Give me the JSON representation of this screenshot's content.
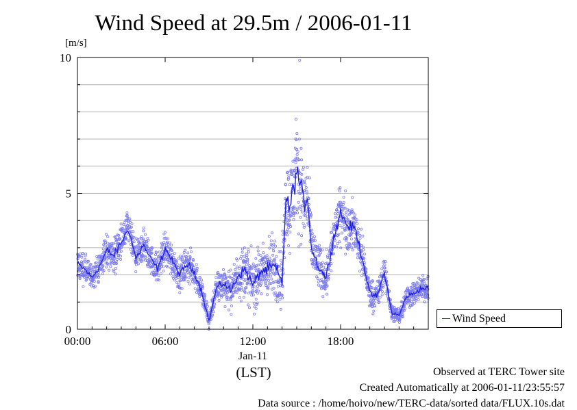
{
  "header": {
    "title": "Wind Speed at 29.5m / 2006-01-11",
    "unit": "[m/s]"
  },
  "chart_data": {
    "type": "scatter",
    "title": "Wind Speed at 29.5m / 2006-01-11",
    "ylabel": "[m/s]",
    "xlabel": "(LST)",
    "x_unit": "hour of day",
    "xlim": [
      0,
      24
    ],
    "ylim": [
      0,
      10
    ],
    "x_ticks": [
      {
        "value": 0,
        "label": "00:00"
      },
      {
        "value": 6,
        "label": "06:00"
      },
      {
        "value": 12,
        "label": "12:00"
      },
      {
        "value": 18,
        "label": "18:00"
      }
    ],
    "x_date_label": "Jan-11",
    "y_ticks": [
      {
        "value": 0,
        "label": "0"
      },
      {
        "value": 5,
        "label": "5"
      },
      {
        "value": 10,
        "label": "10"
      }
    ],
    "grid": true,
    "legend": {
      "position": "right",
      "entries": [
        "Wind Speed"
      ]
    },
    "series": [
      {
        "name": "Wind Speed",
        "style": "points+line",
        "color": "#2020e0",
        "point_color": "#7a7af0",
        "hour": [
          0.0,
          0.5,
          1.0,
          1.5,
          2.0,
          2.5,
          3.0,
          3.5,
          4.0,
          4.5,
          5.0,
          5.5,
          6.0,
          6.5,
          7.0,
          7.5,
          8.0,
          8.5,
          9.0,
          9.5,
          10.0,
          10.5,
          11.0,
          11.5,
          12.0,
          12.5,
          13.0,
          13.5,
          14.0,
          14.25,
          14.5,
          14.75,
          15.0,
          15.25,
          15.5,
          15.75,
          16.0,
          16.5,
          17.0,
          17.5,
          18.0,
          18.5,
          19.0,
          19.5,
          20.0,
          20.5,
          21.0,
          21.5,
          22.0,
          22.5,
          23.0,
          23.5,
          24.0
        ],
        "mean": [
          2.4,
          2.2,
          1.9,
          2.3,
          2.9,
          2.7,
          3.2,
          3.7,
          2.6,
          3.1,
          2.6,
          2.2,
          3.0,
          2.5,
          2.0,
          2.4,
          2.1,
          1.4,
          0.3,
          1.5,
          1.7,
          1.4,
          2.0,
          2.2,
          1.6,
          2.1,
          2.2,
          2.3,
          1.7,
          4.8,
          4.4,
          5.1,
          5.8,
          5.3,
          4.6,
          4.9,
          3.0,
          2.3,
          1.9,
          3.3,
          4.3,
          3.8,
          3.7,
          2.6,
          1.3,
          1.2,
          2.1,
          0.6,
          0.5,
          1.2,
          1.3,
          1.5,
          1.5
        ],
        "spread": [
          0.5,
          0.5,
          0.4,
          0.5,
          0.6,
          0.6,
          0.6,
          0.6,
          0.5,
          0.6,
          0.5,
          0.5,
          0.6,
          0.6,
          0.5,
          0.6,
          0.5,
          0.5,
          0.3,
          0.5,
          0.6,
          0.6,
          0.8,
          0.9,
          0.9,
          0.9,
          1.0,
          1.1,
          1.0,
          1.4,
          1.5,
          1.6,
          1.8,
          1.6,
          1.4,
          1.3,
          1.0,
          0.8,
          0.7,
          0.8,
          0.9,
          0.9,
          0.8,
          0.7,
          0.5,
          0.5,
          0.5,
          0.3,
          0.3,
          0.4,
          0.4,
          0.4,
          0.4
        ],
        "peak": {
          "hour": 15.2,
          "value": 9.9
        }
      }
    ]
  },
  "footer": {
    "line1": "Observed at TERC Tower site",
    "line2": "Created Automatically at 2006-01-11/23:55:57",
    "line3": "Data source : /home/hoivo/new/TERC-data/sorted  data/FLUX.10s.dat"
  }
}
